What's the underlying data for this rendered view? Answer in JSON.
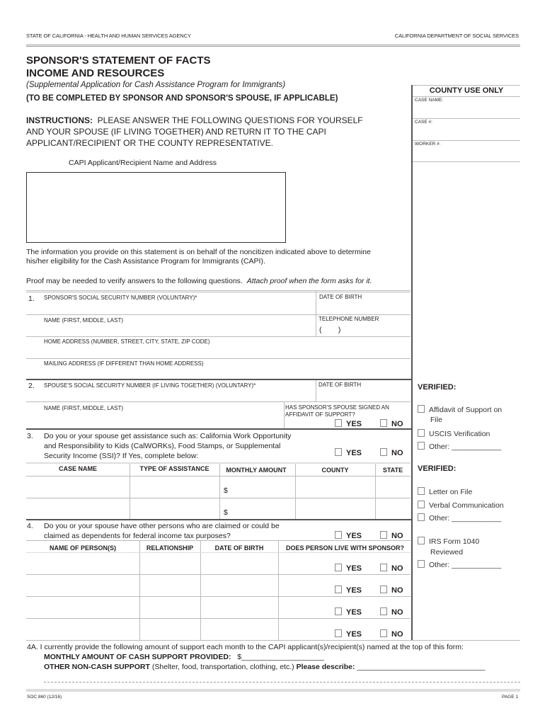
{
  "header": {
    "left": "STATE OF CALIFORNIA - HEALTH AND HUMAN SERVICES AGENCY",
    "right": "CALIFORNIA DEPARTMENT OF SOCIAL SERVICES"
  },
  "title": {
    "line1": "SPONSOR'S STATEMENT OF FACTS",
    "line2": "INCOME AND RESOURCES",
    "subtitle": "(Supplemental Application for Cash Assistance Program for Immigrants)",
    "completed_by": "(TO BE COMPLETED BY SPONSOR AND SPONSOR'S SPOUSE, IF APPLICABLE)"
  },
  "instructions": {
    "label": "INSTRUCTIONS:",
    "line1": "PLEASE ANSWER THE FOLLOWING QUESTIONS FOR YOURSELF",
    "line2": "AND YOUR SPOUSE (IF LIVING TOGETHER) AND RETURN IT TO THE CAPI",
    "line3": "APPLICANT/RECIPIENT OR THE COUNTY REPRESENTATIVE."
  },
  "county": {
    "title": "COUNTY USE ONLY",
    "case_name": "CASE NAME:",
    "case_no": "CASE #:",
    "worker_no": "WORKER #:"
  },
  "capi_label": "CAPI Applicant/Recipient Name and Address",
  "info": {
    "line1": "The information you provide on this statement is on behalf of the noncitizen indicated above to determine",
    "line2": "his/her eligibility for the Cash Assistance Program for Immigrants (CAPI).",
    "proof": "Proof may be needed to verify answers to the following questions.",
    "proof_italic": "Attach proof when the form asks for it."
  },
  "s1": {
    "num": "1.",
    "ssn": "SPONSOR'S SOCIAL SECURITY NUMBER (VOLUNTARY)*",
    "dob": "DATE OF BIRTH",
    "name": "NAME (FIRST, MIDDLE, LAST)",
    "phone": "TELEPHONE NUMBER",
    "phone_paren": "(        )",
    "home": "HOME ADDRESS (NUMBER, STREET, CITY, STATE, ZIP CODE)",
    "mailing": "MAILING ADDRESS (IF DIFFERENT THAN HOME ADDRESS)"
  },
  "s2": {
    "num": "2.",
    "ssn": "SPOUSE'S SOCIAL SECURITY NUMBER (IF LIVING TOGETHER) (VOLUNTARY)*",
    "dob": "DATE OF BIRTH",
    "name": "NAME (FIRST, MIDDLE, LAST)",
    "affidavit1": "HAS SPONSOR'S SPOUSE SIGNED AN",
    "affidavit2": "AFFIDAVIT OF SUPPORT?"
  },
  "yes": "YES",
  "no": "NO",
  "s3": {
    "num": "3.",
    "line1": "Do you or your spouse get assistance such as:  California  Work Opportunity",
    "line2": "and Responsibility to Kids (CalWORKs), Food Stamps, or Supplemental",
    "line3": "Security Income (SSI)?  If Yes, complete below:",
    "headers": [
      "CASE NAME",
      "TYPE OF ASSISTANCE",
      "MONTHLY AMOUNT",
      "COUNTY",
      "STATE"
    ],
    "dollar": "$"
  },
  "s4": {
    "num": "4.",
    "line1": "Do you or your spouse have other persons who are claimed or could be",
    "line2": "claimed as dependents for federal income tax purposes?",
    "headers": [
      "NAME OF PERSON(S)",
      "RELATIONSHIP",
      "DATE OF BIRTH",
      "DOES PERSON LIVE WITH SPONSOR?"
    ]
  },
  "s4a": {
    "line1": "4A.  I currently provide the following amount of support each month to the CAPI applicant(s)/recipient(s) named at the top of this form:",
    "cash": "MONTHLY AMOUNT OF CASH SUPPORT PROVIDED:",
    "cash_blank": "$____________________",
    "noncash": "OTHER NON-CASH SUPPORT",
    "noncash_detail": " (Shelter, food, transportation, clothing, etc.) ",
    "describe": "Please describe:",
    "describe_blank": " _______________________________"
  },
  "verified": {
    "title": "VERIFIED:",
    "group1": [
      "Affidavit of Support on",
      "File",
      "USCIS Verification",
      "Other: ____________"
    ],
    "group2": [
      "Letter on File",
      "Verbal Communication",
      "Other: ____________",
      "IRS Form 1040",
      "Reviewed",
      "Other: ____________"
    ]
  },
  "footer": {
    "form": "SOC 860 (12/16)",
    "page": "PAGE 1"
  }
}
